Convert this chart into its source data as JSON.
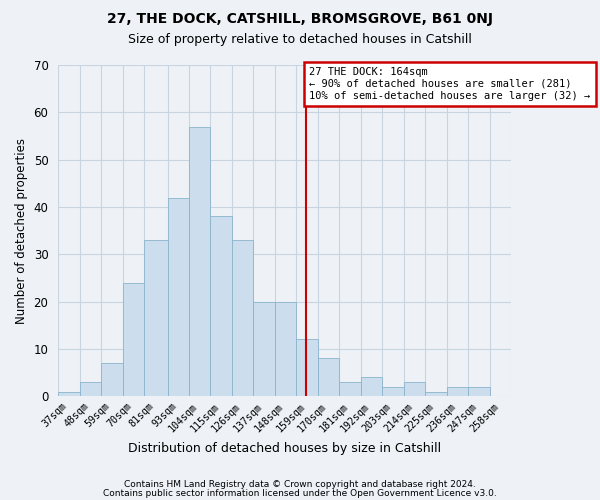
{
  "title1": "27, THE DOCK, CATSHILL, BROMSGROVE, B61 0NJ",
  "title2": "Size of property relative to detached houses in Catshill",
  "xlabel": "Distribution of detached houses by size in Catshill",
  "ylabel": "Number of detached properties",
  "bin_labels": [
    "37sqm",
    "48sqm",
    "59sqm",
    "70sqm",
    "81sqm",
    "93sqm",
    "104sqm",
    "115sqm",
    "126sqm",
    "137sqm",
    "148sqm",
    "159sqm",
    "170sqm",
    "181sqm",
    "192sqm",
    "203sqm",
    "214sqm",
    "225sqm",
    "236sqm",
    "247sqm",
    "258sqm"
  ],
  "bin_edges": [
    37,
    48,
    59,
    70,
    81,
    93,
    104,
    115,
    126,
    137,
    148,
    159,
    170,
    181,
    192,
    203,
    214,
    225,
    236,
    247,
    258,
    269
  ],
  "bar_heights": [
    1,
    3,
    7,
    24,
    33,
    42,
    57,
    38,
    33,
    20,
    20,
    12,
    8,
    3,
    4,
    2,
    3,
    1,
    2,
    2,
    0
  ],
  "bar_color": "#ccdded",
  "bar_edgecolor": "#8ab4cc",
  "vline_x": 164,
  "annotation_text": "27 THE DOCK: 164sqm\n← 90% of detached houses are smaller (281)\n10% of semi-detached houses are larger (32) →",
  "annotation_box_color": "#ffffff",
  "annotation_box_edgecolor": "#cc0000",
  "vline_color": "#cc0000",
  "ylim": [
    0,
    70
  ],
  "yticks": [
    0,
    10,
    20,
    30,
    40,
    50,
    60,
    70
  ],
  "grid_color": "#c8d4e0",
  "footnote1": "Contains HM Land Registry data © Crown copyright and database right 2024.",
  "footnote2": "Contains public sector information licensed under the Open Government Licence v3.0.",
  "bg_color": "#eef2f7"
}
